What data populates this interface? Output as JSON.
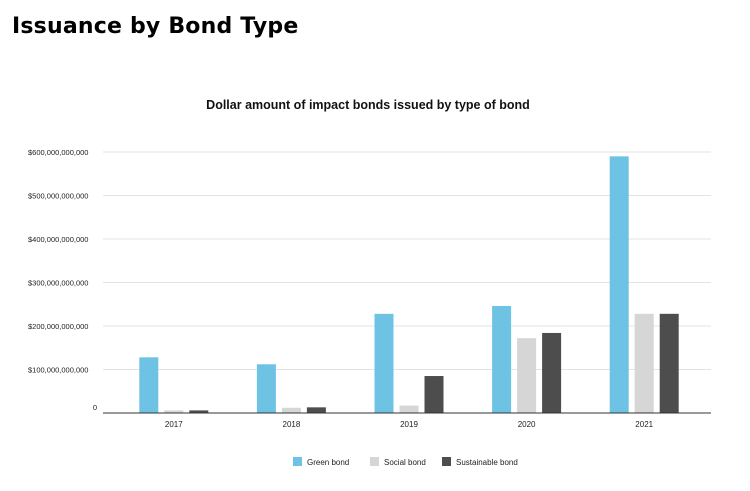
{
  "page": {
    "heading": "Issuance by Bond Type"
  },
  "chart_data": {
    "type": "bar",
    "title": "Dollar amount of impact bonds issued by type of bond",
    "xlabel": "",
    "ylabel": "",
    "categories": [
      "2017",
      "2018",
      "2019",
      "2020",
      "2021"
    ],
    "series": [
      {
        "name": "Green bond",
        "color": "#6ec3e4",
        "values": [
          128000000000,
          112000000000,
          228000000000,
          246000000000,
          590000000000
        ]
      },
      {
        "name": "Social bond",
        "color": "#d6d6d6",
        "values": [
          6000000000,
          12000000000,
          17000000000,
          172000000000,
          228000000000
        ]
      },
      {
        "name": "Sustainable bond",
        "color": "#4d4d4d",
        "values": [
          6000000000,
          13000000000,
          85000000000,
          184000000000,
          228000000000
        ]
      }
    ],
    "yticks": [
      {
        "value": 0,
        "label": "0"
      },
      {
        "value": 100000000000,
        "label": "$100,000,000,000"
      },
      {
        "value": 200000000000,
        "label": "$200,000,000,000"
      },
      {
        "value": 300000000000,
        "label": "$300,000,000,000"
      },
      {
        "value": 400000000000,
        "label": "$400,000,000,000"
      },
      {
        "value": 500000000000,
        "label": "$500,000,000,000"
      },
      {
        "value": 600000000000,
        "label": "$600,000,000,000"
      }
    ],
    "ylim": [
      0,
      600000000000
    ],
    "grid": true,
    "legend_position": "bottom"
  }
}
